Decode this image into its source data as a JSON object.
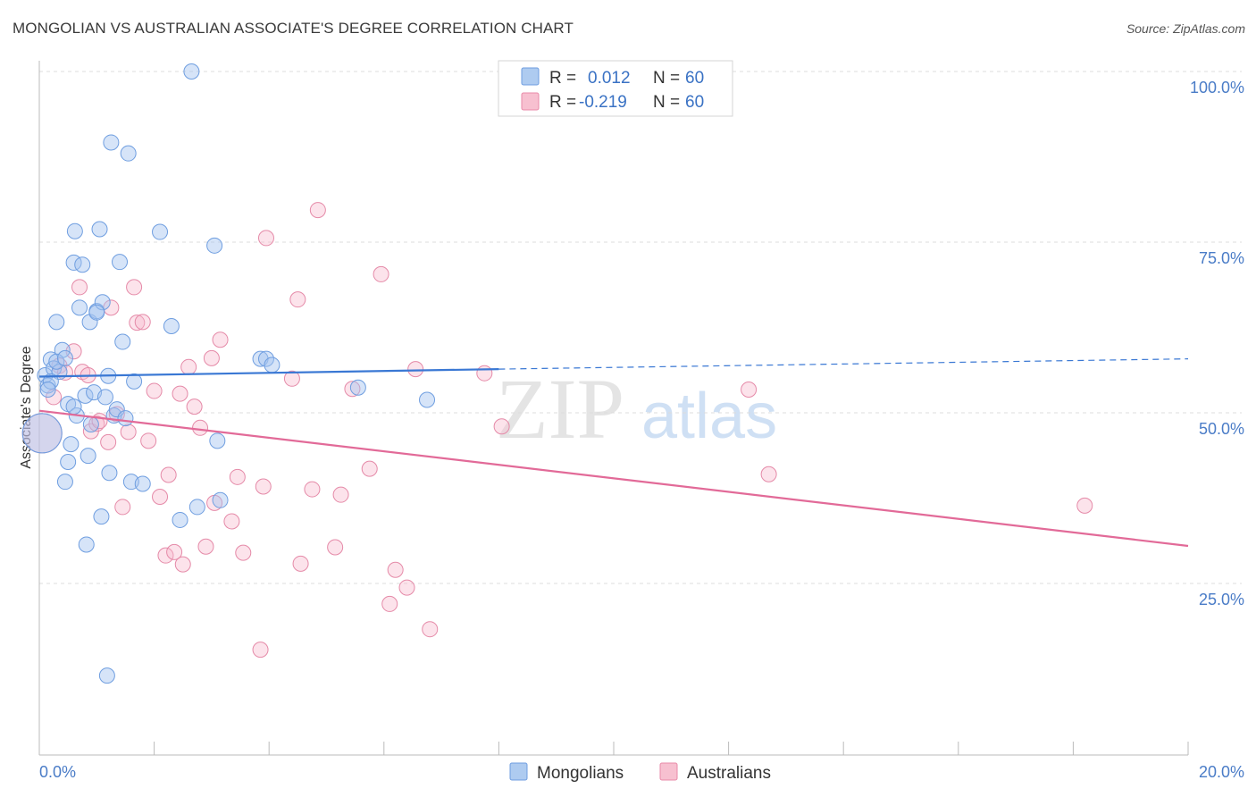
{
  "title": "MONGOLIAN VS AUSTRALIAN ASSOCIATE'S DEGREE CORRELATION CHART",
  "source": "Source: ZipAtlas.com",
  "watermark": {
    "zip": "ZIP",
    "atlas": "atlas"
  },
  "legend_top": [
    {
      "r_label": "R =",
      "r_value": "0.012",
      "n_label": "N =",
      "n_value": "60",
      "fill": "#aecbf0",
      "stroke": "#6f9ee0"
    },
    {
      "r_label": "R =",
      "r_value": "-0.219",
      "n_label": "N =",
      "n_value": "60",
      "fill": "#f7c0d0",
      "stroke": "#e88aa8"
    }
  ],
  "legend_bottom": [
    {
      "label": "Mongolians",
      "fill": "#aecbf0",
      "stroke": "#6f9ee0"
    },
    {
      "label": "Australians",
      "fill": "#f7c0d0",
      "stroke": "#e88aa8"
    }
  ],
  "colors": {
    "blue_fill": "rgba(164,196,240,0.45)",
    "blue_stroke": "#6f9ee0",
    "pink_fill": "rgba(247,184,204,0.40)",
    "pink_stroke": "#e58aa8",
    "blue_line": "#3a78d4",
    "pink_line": "#e26a98",
    "grid": "#dddddd",
    "tick_text": "#4a7cc7"
  },
  "chart_data": {
    "type": "scatter",
    "title": "MONGOLIAN VS AUSTRALIAN ASSOCIATE'S DEGREE CORRELATION CHART",
    "xlabel": "",
    "ylabel": "Associate's Degree",
    "xlim": [
      0,
      20
    ],
    "ylim": [
      0,
      105
    ],
    "x_tick_labels": [
      "0.0%",
      "20.0%"
    ],
    "y_ticks": [
      25,
      50,
      75,
      100
    ],
    "y_tick_labels": [
      "25.0%",
      "50.0%",
      "75.0%",
      "100.0%"
    ],
    "series": [
      {
        "name": "Mongolians",
        "r": 0.012,
        "n": 60,
        "trend": {
          "x0": 0,
          "y0": 55.3,
          "x1": 8.0,
          "y1": 56.4,
          "x_end_dashed": 20,
          "y_end_dashed": 57.9
        },
        "points": [
          [
            0.05,
            47.0
          ],
          [
            0.1,
            55.5
          ],
          [
            0.15,
            54.0
          ],
          [
            0.2,
            57.8
          ],
          [
            0.25,
            56.5
          ],
          [
            0.3,
            63.3
          ],
          [
            0.35,
            56.0
          ],
          [
            0.4,
            59.2
          ],
          [
            0.45,
            39.9
          ],
          [
            0.5,
            51.3
          ],
          [
            0.5,
            42.8
          ],
          [
            0.55,
            45.4
          ],
          [
            0.6,
            72.0
          ],
          [
            0.62,
            76.6
          ],
          [
            0.65,
            49.6
          ],
          [
            0.7,
            65.4
          ],
          [
            0.75,
            71.7
          ],
          [
            0.8,
            52.5
          ],
          [
            0.82,
            30.7
          ],
          [
            0.85,
            43.7
          ],
          [
            0.88,
            63.3
          ],
          [
            0.9,
            48.3
          ],
          [
            0.95,
            53.0
          ],
          [
            1.0,
            64.9
          ],
          [
            1.05,
            76.9
          ],
          [
            1.08,
            34.8
          ],
          [
            1.1,
            66.2
          ],
          [
            1.15,
            52.3
          ],
          [
            1.18,
            11.5
          ],
          [
            1.2,
            55.4
          ],
          [
            1.22,
            41.2
          ],
          [
            1.25,
            89.6
          ],
          [
            1.3,
            49.6
          ],
          [
            1.35,
            50.5
          ],
          [
            1.4,
            72.1
          ],
          [
            1.45,
            60.4
          ],
          [
            1.5,
            49.2
          ],
          [
            1.55,
            88.0
          ],
          [
            1.6,
            39.9
          ],
          [
            1.65,
            54.6
          ],
          [
            1.8,
            39.6
          ],
          [
            2.1,
            76.5
          ],
          [
            2.3,
            62.7
          ],
          [
            2.45,
            34.3
          ],
          [
            2.65,
            100.0
          ],
          [
            2.75,
            36.2
          ],
          [
            3.05,
            74.5
          ],
          [
            3.1,
            45.9
          ],
          [
            3.15,
            37.2
          ],
          [
            3.85,
            57.9
          ],
          [
            3.95,
            57.9
          ],
          [
            4.05,
            57.0
          ],
          [
            5.55,
            53.7
          ],
          [
            6.75,
            51.9
          ],
          [
            0.2,
            54.6
          ],
          [
            0.3,
            57.5
          ],
          [
            0.45,
            58.0
          ],
          [
            1.0,
            64.7
          ],
          [
            0.15,
            53.4
          ],
          [
            0.6,
            50.9
          ]
        ]
      },
      {
        "name": "Australians",
        "r": -0.219,
        "n": 60,
        "trend": {
          "x0": 0,
          "y0": 50.3,
          "x1": 20,
          "y1": 30.5
        },
        "points": [
          [
            0.05,
            47.0
          ],
          [
            0.25,
            52.3
          ],
          [
            0.35,
            56.9
          ],
          [
            0.45,
            55.9
          ],
          [
            0.6,
            59.0
          ],
          [
            0.7,
            68.4
          ],
          [
            0.75,
            56.0
          ],
          [
            0.85,
            55.5
          ],
          [
            0.9,
            47.3
          ],
          [
            1.0,
            48.4
          ],
          [
            1.05,
            48.8
          ],
          [
            1.2,
            45.7
          ],
          [
            1.25,
            65.4
          ],
          [
            1.35,
            49.8
          ],
          [
            1.45,
            36.2
          ],
          [
            1.55,
            47.2
          ],
          [
            1.65,
            68.4
          ],
          [
            1.7,
            63.2
          ],
          [
            1.8,
            63.3
          ],
          [
            1.9,
            45.9
          ],
          [
            2.0,
            53.2
          ],
          [
            2.1,
            37.7
          ],
          [
            2.2,
            29.1
          ],
          [
            2.25,
            40.9
          ],
          [
            2.35,
            29.6
          ],
          [
            2.45,
            52.8
          ],
          [
            2.5,
            27.8
          ],
          [
            2.6,
            56.7
          ],
          [
            2.7,
            50.9
          ],
          [
            2.8,
            47.8
          ],
          [
            2.9,
            30.4
          ],
          [
            3.0,
            58.0
          ],
          [
            3.05,
            36.8
          ],
          [
            3.15,
            60.7
          ],
          [
            3.35,
            34.1
          ],
          [
            3.45,
            40.6
          ],
          [
            3.55,
            29.5
          ],
          [
            3.85,
            15.3
          ],
          [
            3.9,
            39.2
          ],
          [
            3.95,
            75.6
          ],
          [
            4.4,
            55.0
          ],
          [
            4.5,
            66.6
          ],
          [
            4.55,
            27.9
          ],
          [
            4.75,
            38.8
          ],
          [
            4.85,
            79.7
          ],
          [
            5.15,
            30.3
          ],
          [
            5.25,
            38.0
          ],
          [
            5.45,
            53.5
          ],
          [
            5.75,
            41.8
          ],
          [
            5.95,
            70.3
          ],
          [
            6.1,
            22.0
          ],
          [
            6.2,
            27.0
          ],
          [
            6.4,
            24.4
          ],
          [
            6.55,
            56.4
          ],
          [
            6.8,
            18.3
          ],
          [
            7.75,
            55.8
          ],
          [
            8.05,
            48.0
          ],
          [
            12.35,
            53.4
          ],
          [
            12.7,
            41.0
          ],
          [
            18.2,
            36.4
          ]
        ]
      }
    ]
  }
}
